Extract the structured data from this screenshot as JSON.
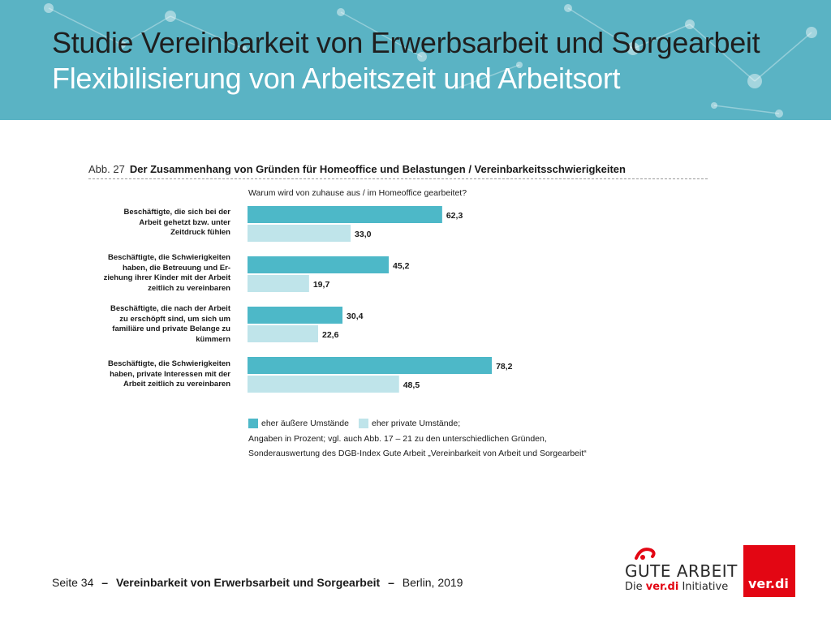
{
  "header": {
    "title_line1": "Studie Vereinbarkeit von Erwerbsarbeit und Sorgearbeit",
    "title_line2": "Flexibilisierung von Arbeitszeit und Arbeitsort",
    "background_color": "#5ab3c4"
  },
  "figure": {
    "number": "Abb. 27",
    "title": "Der Zusammenhang von Gründen für Homeoffice und Belastungen / Vereinbarkeitsschwierigkeiten",
    "question": "Warum wird von zuhause aus / im Homeoffice gearbeitet?"
  },
  "chart_data": {
    "type": "bar",
    "orientation": "horizontal",
    "categories": [
      [
        "Beschäftigte, die sich bei der",
        "Arbeit gehetzt bzw. unter",
        "Zeitdruck fühlen"
      ],
      [
        "Beschäftigte, die Schwierigkeiten",
        "haben, die Betreuung und Er-",
        "ziehung ihrer Kinder mit der Arbeit",
        "zeitlich zu vereinbaren"
      ],
      [
        "Beschäftigte, die nach der Arbeit",
        "zu erschöpft sind, um sich um",
        "familiäre und private Belange zu",
        "kümmern"
      ],
      [
        "Beschäftigte, die Schwierigkeiten",
        "haben, private Interessen mit der",
        "Arbeit zeitlich zu vereinbaren"
      ]
    ],
    "series": [
      {
        "name": "eher äußere Umstände",
        "values": [
          62.3,
          45.2,
          30.4,
          78.2
        ],
        "labels": [
          "62,3",
          "45,2",
          "30,4",
          "78,2"
        ],
        "color": "#4db8c8"
      },
      {
        "name": "eher private Umstände;",
        "values": [
          33.0,
          19.7,
          22.6,
          48.5
        ],
        "labels": [
          "33,0",
          "19,7",
          "22,6",
          "48,5"
        ],
        "color": "#bfe4ea"
      }
    ],
    "xlim": [
      0,
      100
    ],
    "grid": false,
    "legend": "bottom"
  },
  "notes": [
    "Angaben in Prozent; vgl. auch Abb. 17 – 21 zu den unterschiedlichen Gründen,",
    "Sonderauswertung des DGB-Index Gute Arbeit „Vereinbarkeit von Arbeit und Sorgearbeit“"
  ],
  "footer": {
    "page": "Seite 34",
    "sep": "–",
    "title": "Vereinbarkeit von Erwerbsarbeit und Sorgearbeit",
    "place_year": "Berlin, 2019"
  },
  "logos": {
    "gute_arbeit": "GUTE ARBEIT",
    "sub_prefix": "Die",
    "sub_brand": "ver.di",
    "sub_suffix": "Initiative",
    "verdi": "ver.di",
    "brand_red": "#e30613"
  }
}
